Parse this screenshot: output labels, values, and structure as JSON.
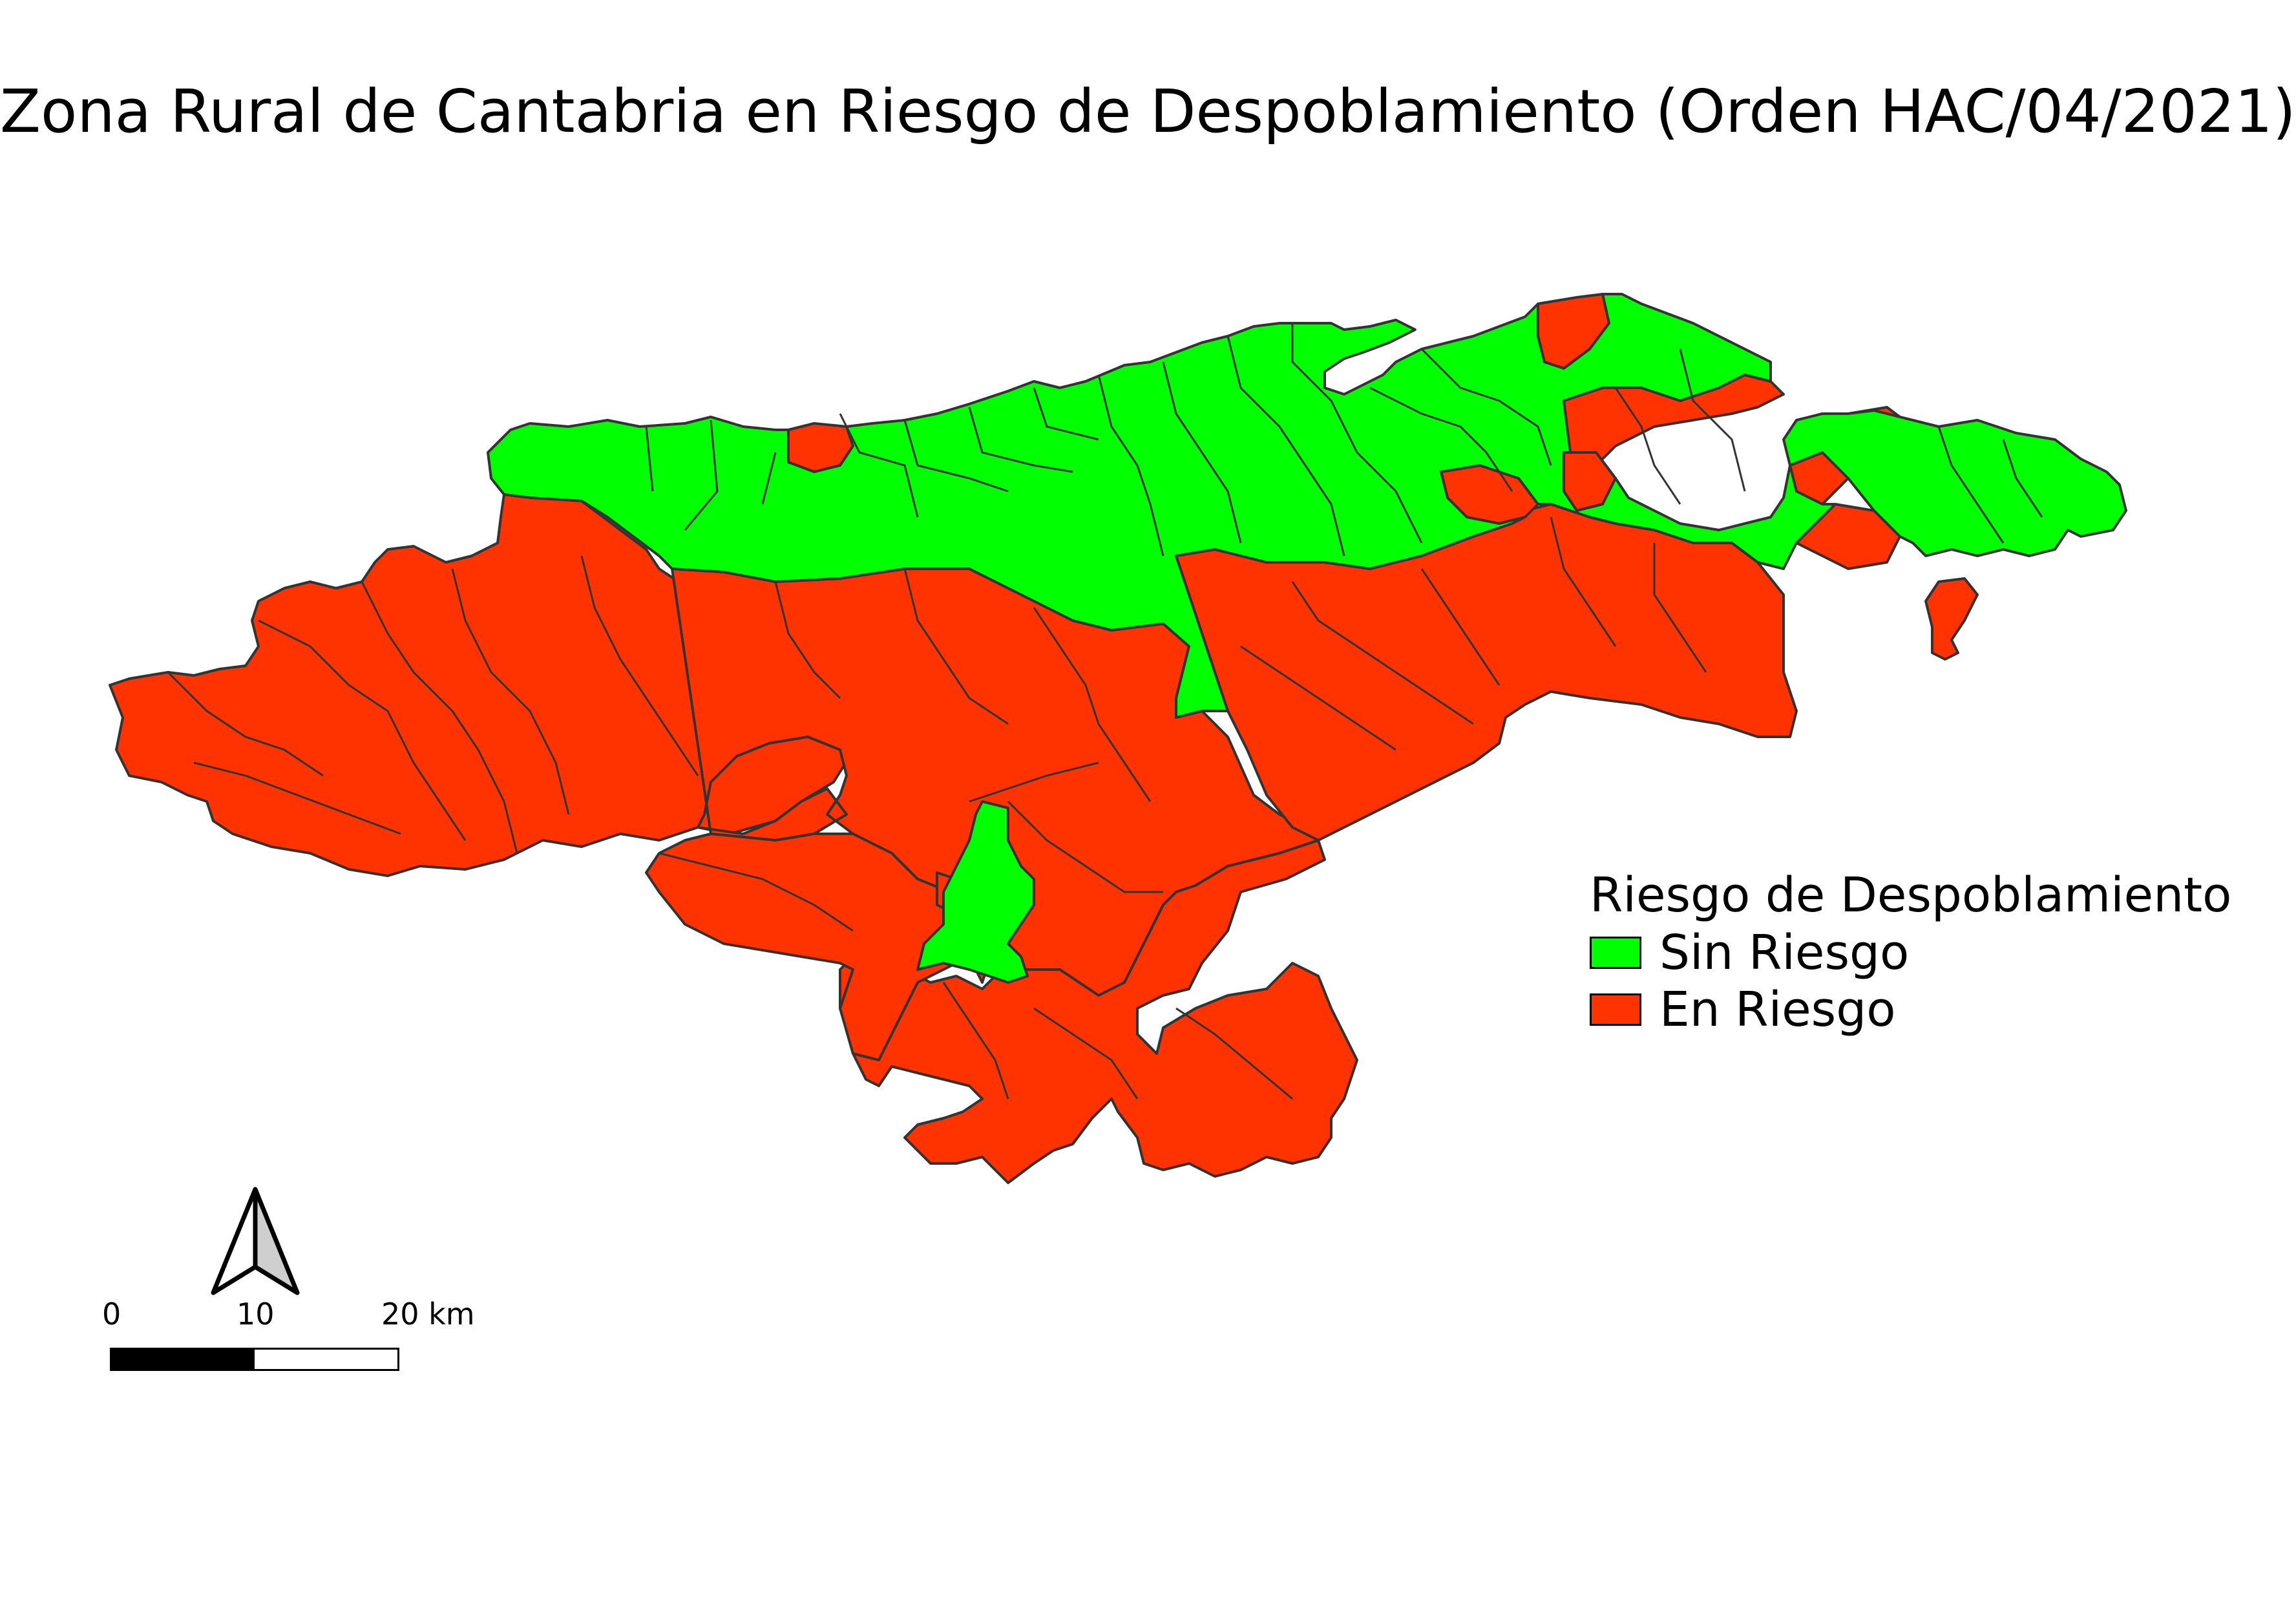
{
  "title": "Zona Rural de Cantabria en Riesgo de Despoblamiento (Orden HAC/04/2021)",
  "colors": {
    "sin_riesgo": "#00ff00",
    "en_riesgo": "#ff3300",
    "outline": "#333333",
    "background": "#ffffff"
  },
  "legend": {
    "title": "Riesgo de Despoblamiento",
    "items": [
      {
        "label": "Sin Riesgo",
        "color": "#00ff00"
      },
      {
        "label": "En Riesgo",
        "color": "#ff3300"
      }
    ]
  },
  "scale_bar": {
    "labels": [
      "0",
      "10",
      "20 km"
    ],
    "units": "km"
  },
  "north_arrow": {
    "icon": "north-arrow-icon"
  }
}
